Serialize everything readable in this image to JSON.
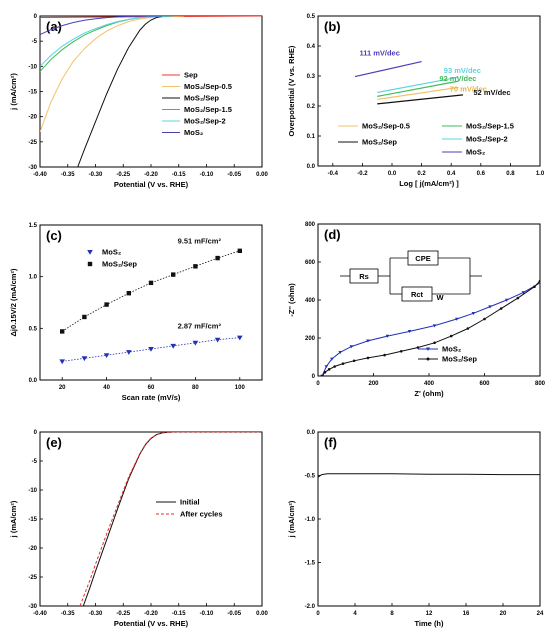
{
  "chart_data": [
    {
      "panel": "(a)",
      "type": "line",
      "xlabel": "Potential (V vs. RHE)",
      "ylabel": "j (mA/cm²)",
      "xlim": [
        -0.4,
        0.0
      ],
      "ylim": [
        -30,
        0
      ],
      "xticks": [
        "-0.40",
        "-0.35",
        "-0.30",
        "-0.25",
        "-0.20",
        "-0.15",
        "-0.10",
        "-0.05",
        "0.00"
      ],
      "yticks": [
        "0",
        "-5",
        "-10",
        "-15",
        "-20",
        "-25",
        "-30"
      ],
      "legend_position": "bottom-right",
      "series": [
        {
          "name": "Sep",
          "color": "#e8392d",
          "x": [
            -0.4,
            0.0
          ],
          "y": [
            -0.3,
            0
          ]
        },
        {
          "name": "MoS₂/Sep-0.5",
          "color": "#f5c26b",
          "x": [
            -0.4,
            -0.38,
            -0.36,
            -0.34,
            -0.32,
            -0.3,
            -0.28,
            -0.26,
            -0.24,
            -0.22,
            -0.2,
            -0.18,
            -0.16,
            -0.14
          ],
          "y": [
            -23,
            -17,
            -12.5,
            -9,
            -6.5,
            -4.5,
            -3,
            -1.9,
            -1.1,
            -0.6,
            -0.3,
            -0.1,
            -0.03,
            0
          ]
        },
        {
          "name": "MoS₂/Sep",
          "color": "#111111",
          "x": [
            -0.332,
            -0.32,
            -0.3,
            -0.28,
            -0.26,
            -0.24,
            -0.22,
            -0.21,
            -0.2,
            -0.19,
            -0.18,
            -0.17,
            -0.16
          ],
          "y": [
            -30,
            -26.5,
            -21,
            -15.5,
            -10.5,
            -6.2,
            -2.8,
            -1.6,
            -0.8,
            -0.3,
            -0.1,
            -0.03,
            0
          ]
        },
        {
          "name": "MoS₂/Sep-1.5",
          "color": "#3dbb5a",
          "x": [
            -0.4,
            -0.38,
            -0.36,
            -0.34,
            -0.32,
            -0.3,
            -0.28,
            -0.26,
            -0.24,
            -0.22,
            -0.2,
            -0.18,
            -0.16
          ],
          "y": [
            -11,
            -8.6,
            -6.7,
            -5.1,
            -3.8,
            -2.8,
            -1.9,
            -1.2,
            -0.7,
            -0.35,
            -0.15,
            -0.05,
            0
          ]
        },
        {
          "name": "MoS₂/Sep-2",
          "color": "#5fd3e0",
          "x": [
            -0.4,
            -0.38,
            -0.36,
            -0.34,
            -0.32,
            -0.3,
            -0.28,
            -0.26,
            -0.24,
            -0.22,
            -0.2,
            -0.18,
            -0.16
          ],
          "y": [
            -10,
            -7.8,
            -6.0,
            -4.6,
            -3.4,
            -2.5,
            -1.7,
            -1.1,
            -0.65,
            -0.32,
            -0.13,
            -0.04,
            0
          ]
        },
        {
          "name": "MoS₂",
          "color": "#4b3fb5",
          "x": [
            -0.4,
            -0.38,
            -0.36,
            -0.34,
            -0.32,
            -0.3,
            -0.28,
            -0.26,
            -0.24,
            -0.22,
            -0.2,
            -0.18
          ],
          "y": [
            -3.7,
            -2.7,
            -1.9,
            -1.3,
            -0.85,
            -0.55,
            -0.32,
            -0.17,
            -0.08,
            -0.03,
            -0.01,
            0
          ]
        }
      ]
    },
    {
      "panel": "(b)",
      "type": "line",
      "xlabel": "Log [ j(mA/cm²) ]",
      "ylabel": "Overpotential (V vs. RHE)",
      "xlim": [
        -0.5,
        1.0
      ],
      "ylim": [
        0.0,
        0.5
      ],
      "xticks": [
        "-0.4",
        "-0.2",
        "0.0",
        "0.2",
        "0.4",
        "0.6",
        "0.8",
        "1.0"
      ],
      "yticks": [
        "0.0",
        "0.1",
        "0.2",
        "0.3",
        "0.4",
        "0.5"
      ],
      "legend_position": "bottom",
      "series": [
        {
          "name": "MoS₂/Sep-0.5",
          "color": "#f5c26b",
          "x": [
            -0.1,
            0.45
          ],
          "y": [
            0.222,
            0.262
          ],
          "annotation": "70 mV/dec"
        },
        {
          "name": "MoS₂/Sep-1.5",
          "color": "#3dbb5a",
          "x": [
            -0.1,
            0.45
          ],
          "y": [
            0.232,
            0.283
          ],
          "annotation": "92 mV/dec"
        },
        {
          "name": "MoS₂/Sep",
          "color": "#111111",
          "x": [
            -0.1,
            0.48
          ],
          "y": [
            0.207,
            0.237
          ],
          "annotation": "52 mV/dec"
        },
        {
          "name": "MoS₂/Sep-2",
          "color": "#5fd3e0",
          "x": [
            -0.1,
            0.45
          ],
          "y": [
            0.245,
            0.296
          ],
          "annotation": "93 mV/dec"
        },
        {
          "name": "MoS₂",
          "color": "#4b3fb5",
          "x": [
            -0.25,
            0.2
          ],
          "y": [
            0.298,
            0.348
          ],
          "annotation": "111 mV/dec"
        }
      ]
    },
    {
      "panel": "(c)",
      "type": "scatter",
      "xlabel": "Scan rate (mV/s)",
      "ylabel": "Δj0.15V/2 (mA/cm²)",
      "xlim": [
        10,
        110
      ],
      "ylim": [
        0.0,
        1.5
      ],
      "xticks": [
        "20",
        "40",
        "60",
        "80",
        "100"
      ],
      "yticks": [
        "0.0",
        "0.5",
        "1.0",
        "1.5"
      ],
      "legend_position": "top-left",
      "x": [
        20,
        30,
        40,
        50,
        60,
        70,
        80,
        90,
        100
      ],
      "series": [
        {
          "name": "MoS₂",
          "color": "#2330b8",
          "marker": "triangle-down",
          "y": [
            0.18,
            0.21,
            0.24,
            0.27,
            0.3,
            0.33,
            0.36,
            0.39,
            0.41
          ],
          "annotation": "2.87 mF/cm²"
        },
        {
          "name": "MoS₂/Sep",
          "color": "#111111",
          "marker": "square",
          "y": [
            0.47,
            0.61,
            0.73,
            0.84,
            0.94,
            1.02,
            1.1,
            1.18,
            1.25
          ],
          "annotation": "9.51 mF/cm²"
        }
      ]
    },
    {
      "panel": "(d)",
      "type": "line",
      "xlabel": "Z' (ohm)",
      "ylabel": "-Z'' (ohm)",
      "xlim": [
        0,
        800
      ],
      "ylim": [
        0,
        800
      ],
      "xticks": [
        "0",
        "200",
        "400",
        "600",
        "800"
      ],
      "yticks": [
        "0",
        "200",
        "400",
        "600",
        "800"
      ],
      "legend_position": "bottom-right",
      "circuit_labels": [
        "Rs",
        "CPE",
        "Rct",
        "W"
      ],
      "series": [
        {
          "name": "MoS₂",
          "color": "#2330b8",
          "marker": "triangle-down",
          "x": [
            15,
            30,
            50,
            80,
            120,
            180,
            250,
            330,
            420,
            500,
            560,
            620,
            680,
            740,
            800
          ],
          "y": [
            0,
            50,
            90,
            125,
            155,
            185,
            210,
            235,
            265,
            300,
            330,
            365,
            400,
            440,
            490
          ]
        },
        {
          "name": "MoS₂/Sep",
          "color": "#111111",
          "marker": "circle",
          "x": [
            15,
            25,
            40,
            60,
            90,
            130,
            180,
            240,
            300,
            360,
            420,
            480,
            540,
            600,
            660,
            720,
            780,
            800
          ],
          "y": [
            0,
            20,
            35,
            50,
            65,
            80,
            95,
            110,
            130,
            150,
            175,
            210,
            250,
            300,
            355,
            410,
            470,
            500
          ]
        }
      ]
    },
    {
      "panel": "(e)",
      "type": "line",
      "xlabel": "Potential (V vs. RHE)",
      "ylabel": "j (mA/cm²)",
      "xlim": [
        -0.4,
        0.0
      ],
      "ylim": [
        -30,
        0
      ],
      "xticks": [
        "-0.40",
        "-0.35",
        "-0.30",
        "-0.25",
        "-0.20",
        "-0.15",
        "-0.10",
        "-0.05",
        "0.00"
      ],
      "yticks": [
        "0",
        "-5",
        "-10",
        "-15",
        "-20",
        "-25",
        "-30"
      ],
      "legend_position": "right",
      "series": [
        {
          "name": "Initial",
          "color": "#111111",
          "dash": "solid",
          "x": [
            -0.322,
            -0.31,
            -0.3,
            -0.28,
            -0.26,
            -0.24,
            -0.22,
            -0.21,
            -0.2,
            -0.19,
            -0.18,
            -0.17,
            -0.16,
            0.0
          ],
          "y": [
            -30,
            -26.8,
            -24,
            -18.6,
            -13.2,
            -8.0,
            -3.8,
            -2.2,
            -1.1,
            -0.45,
            -0.15,
            -0.05,
            0,
            0
          ]
        },
        {
          "name": "After cycles",
          "color": "#e23030",
          "dash": "dashed",
          "x": [
            -0.328,
            -0.31,
            -0.3,
            -0.28,
            -0.26,
            -0.24,
            -0.22,
            -0.21,
            -0.2,
            -0.19,
            -0.18,
            -0.17,
            -0.16,
            0.0
          ],
          "y": [
            -30,
            -25.5,
            -22.8,
            -17.6,
            -12.6,
            -7.7,
            -3.7,
            -2.1,
            -1.05,
            -0.43,
            -0.14,
            -0.05,
            0,
            0
          ]
        }
      ]
    },
    {
      "panel": "(f)",
      "type": "line",
      "xlabel": "Time (h)",
      "ylabel": "j (mA/cm²)",
      "xlim": [
        0,
        24
      ],
      "ylim": [
        -2.0,
        0.0
      ],
      "xticks": [
        "0",
        "4",
        "8",
        "12",
        "16",
        "20",
        "24"
      ],
      "yticks": [
        "0.0",
        "-0.5",
        "-1.0",
        "-1.5",
        "-2.0"
      ],
      "series": [
        {
          "name": "",
          "color": "#111111",
          "x": [
            0,
            0.4,
            1,
            4,
            8,
            12,
            16,
            20,
            24
          ],
          "y": [
            -0.52,
            -0.49,
            -0.48,
            -0.48,
            -0.48,
            -0.485,
            -0.485,
            -0.49,
            -0.49
          ]
        }
      ]
    }
  ]
}
